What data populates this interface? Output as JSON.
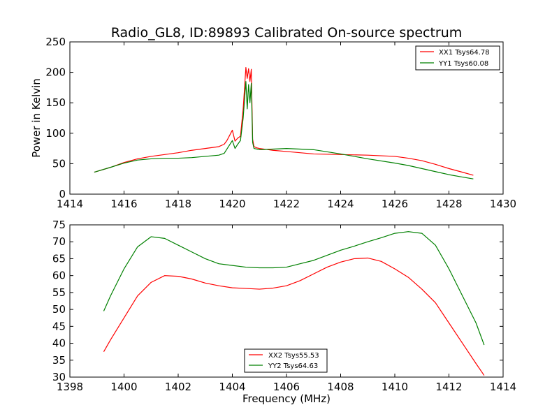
{
  "title": "Radio_GL8, ID:89893 Calibrated On-source spectrum",
  "chart_data": [
    {
      "type": "line",
      "ylabel": "Power in Kelvin",
      "xlabel": "",
      "xlim": [
        1414,
        1430
      ],
      "ylim": [
        0,
        250
      ],
      "xticks": [
        1414,
        1416,
        1418,
        1420,
        1422,
        1424,
        1426,
        1428,
        1430
      ],
      "yticks": [
        0,
        50,
        100,
        150,
        200,
        250
      ],
      "legend_position": "top-right",
      "series": [
        {
          "name": "XX1 Tsys64.78",
          "color": "#ff0000",
          "x": [
            1414.9,
            1415.5,
            1416.0,
            1416.5,
            1417.0,
            1417.5,
            1418.0,
            1418.5,
            1419.0,
            1419.5,
            1419.7,
            1419.8,
            1420.0,
            1420.1,
            1420.2,
            1420.3,
            1420.4,
            1420.5,
            1420.55,
            1420.6,
            1420.65,
            1420.7,
            1420.75,
            1420.8,
            1420.9,
            1421.0,
            1421.5,
            1422.0,
            1423.0,
            1424.0,
            1425.0,
            1426.0,
            1426.5,
            1427.0,
            1427.5,
            1428.0,
            1428.5,
            1428.9
          ],
          "y": [
            36,
            44,
            52,
            58,
            62,
            65,
            68,
            72,
            75,
            78,
            82,
            88,
            105,
            87,
            92,
            95,
            140,
            208,
            190,
            206,
            185,
            205,
            90,
            78,
            76,
            75,
            72,
            70,
            66,
            65,
            64,
            62,
            59,
            55,
            49,
            42,
            36,
            31
          ]
        },
        {
          "name": "YY1 Tsys60.08",
          "color": "#008000",
          "x": [
            1414.9,
            1415.5,
            1416.0,
            1416.5,
            1417.0,
            1417.5,
            1418.0,
            1418.5,
            1419.0,
            1419.5,
            1419.7,
            1419.8,
            1420.0,
            1420.1,
            1420.2,
            1420.3,
            1420.4,
            1420.5,
            1420.55,
            1420.6,
            1420.65,
            1420.7,
            1420.75,
            1420.8,
            1420.9,
            1421.0,
            1421.5,
            1422.0,
            1423.0,
            1424.0,
            1425.0,
            1426.0,
            1426.5,
            1427.0,
            1427.5,
            1428.0,
            1428.5,
            1428.9
          ],
          "y": [
            36,
            44,
            51,
            56,
            58,
            59,
            59,
            60,
            62,
            64,
            67,
            74,
            88,
            75,
            82,
            88,
            125,
            185,
            140,
            180,
            150,
            182,
            85,
            75,
            74,
            73,
            74,
            75,
            73,
            66,
            58,
            51,
            47,
            42,
            37,
            32,
            28,
            25
          ]
        }
      ]
    },
    {
      "type": "line",
      "xlabel": "Frequency (MHz)",
      "ylabel": "",
      "xlim": [
        1398,
        1414
      ],
      "ylim": [
        30,
        75
      ],
      "xticks": [
        1398,
        1400,
        1402,
        1404,
        1406,
        1408,
        1410,
        1412,
        1414
      ],
      "yticks": [
        30,
        35,
        40,
        45,
        50,
        55,
        60,
        65,
        70,
        75
      ],
      "legend_position": "lower-center",
      "series": [
        {
          "name": "XX2 Tsys55.53",
          "color": "#ff0000",
          "x": [
            1399.25,
            1399.5,
            1400.0,
            1400.5,
            1401.0,
            1401.5,
            1402.0,
            1402.5,
            1403.0,
            1403.5,
            1404.0,
            1404.5,
            1405.0,
            1405.5,
            1406.0,
            1406.5,
            1407.0,
            1407.5,
            1408.0,
            1408.5,
            1409.0,
            1409.5,
            1410.0,
            1410.5,
            1411.0,
            1411.5,
            1412.0,
            1412.5,
            1413.0,
            1413.3
          ],
          "y": [
            37.5,
            41,
            47.5,
            54,
            58,
            60,
            59.8,
            59,
            57.8,
            57,
            56.4,
            56.2,
            56,
            56.3,
            57,
            58.5,
            60.5,
            62.5,
            64,
            65,
            65.2,
            64.2,
            62,
            59.5,
            56,
            52,
            46,
            40,
            34,
            30.5
          ]
        },
        {
          "name": "YY2 Tsys64.63",
          "color": "#008000",
          "x": [
            1399.25,
            1399.5,
            1400.0,
            1400.5,
            1401.0,
            1401.5,
            1402.0,
            1402.5,
            1403.0,
            1403.5,
            1404.0,
            1404.5,
            1405.0,
            1405.5,
            1406.0,
            1406.5,
            1407.0,
            1407.5,
            1408.0,
            1408.5,
            1409.0,
            1409.5,
            1410.0,
            1410.5,
            1411.0,
            1411.5,
            1412.0,
            1412.5,
            1413.0,
            1413.3
          ],
          "y": [
            49.5,
            54,
            62,
            68.5,
            71.5,
            71,
            69,
            67,
            65,
            63.5,
            63,
            62.5,
            62.3,
            62.3,
            62.5,
            63.5,
            64.5,
            66,
            67.5,
            68.7,
            70,
            71.2,
            72.5,
            73,
            72.5,
            69,
            62,
            54,
            46,
            39.5
          ]
        }
      ]
    }
  ]
}
